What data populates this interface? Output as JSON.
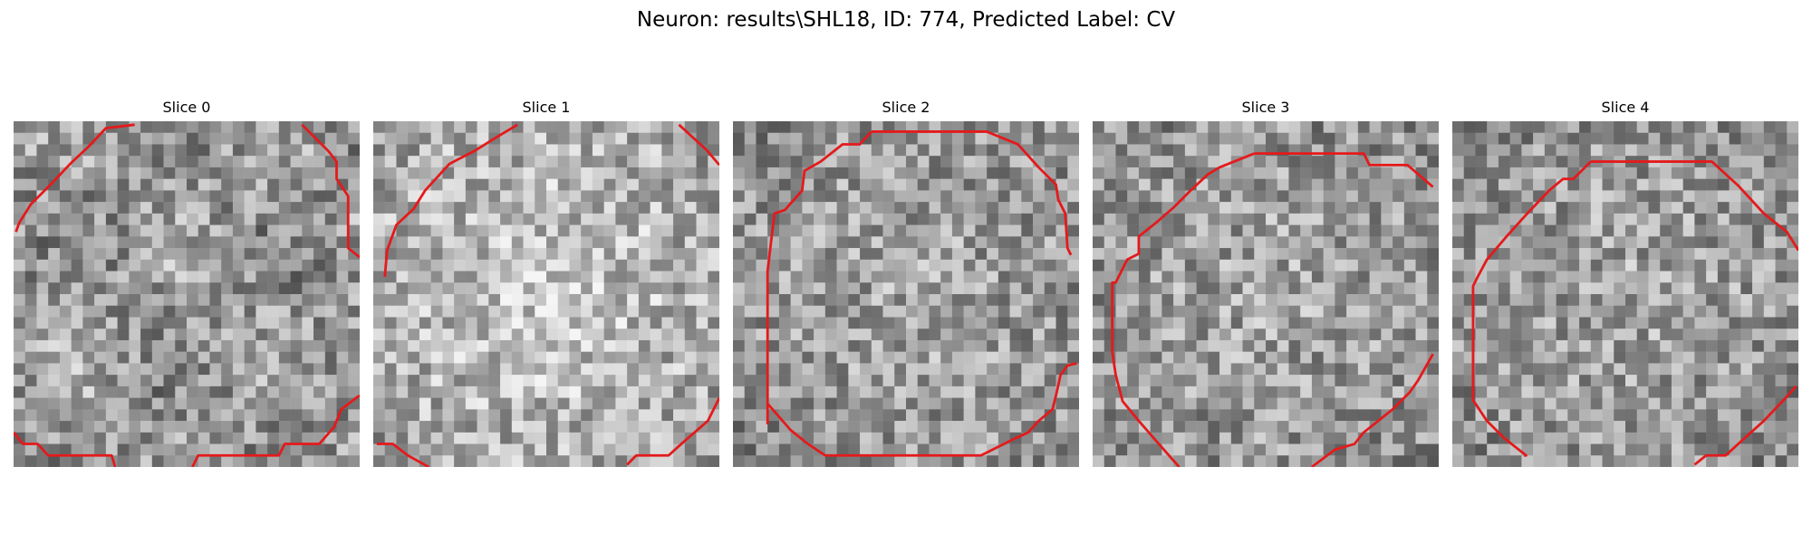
{
  "figure": {
    "title": "Neuron: results\\SHL18, ID: 774, Predicted Label: CV"
  },
  "panels": [
    {
      "title": "Slice 0",
      "seed": 11,
      "gradient": "sparkle",
      "contour_color": "#e41a1c"
    },
    {
      "title": "Slice 1",
      "seed": 23,
      "gradient": "blob",
      "contour_color": "#e41a1c"
    },
    {
      "title": "Slice 2",
      "seed": 37,
      "gradient": "ring",
      "contour_color": "#e41a1c"
    },
    {
      "title": "Slice 3",
      "seed": 41,
      "gradient": "ring",
      "contour_color": "#e41a1c"
    },
    {
      "title": "Slice 4",
      "seed": 53,
      "gradient": "ring",
      "contour_color": "#e41a1c"
    }
  ]
}
